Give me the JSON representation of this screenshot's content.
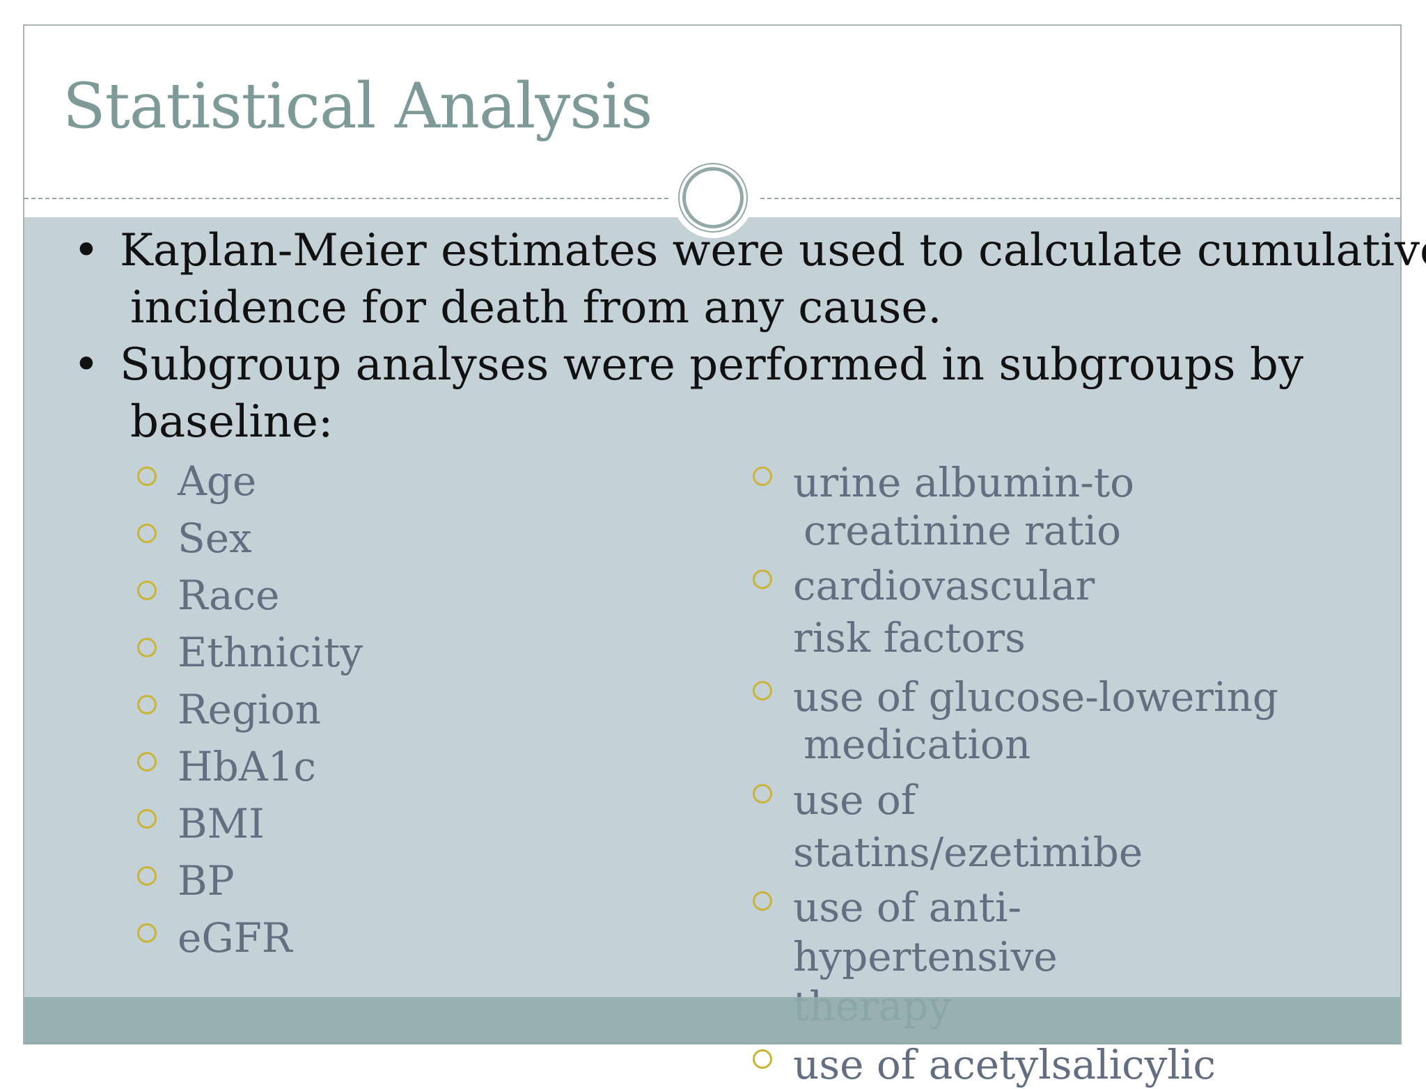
{
  "slide": {
    "title": "Statistical Analysis",
    "bullets": [
      {
        "line1": "Kaplan-Meier estimates were used to calculate cumulative",
        "line2": "incidence for death from any cause."
      },
      {
        "line1": "Subgroup analyses were performed in subgroups by",
        "line2": "baseline:"
      }
    ],
    "left_list": [
      "Age",
      "Sex",
      "Race",
      "Ethnicity",
      "Region",
      "HbA1c",
      "BMI",
      "BP",
      "eGFR"
    ],
    "right_list": [
      {
        "line1": "urine albumin-to",
        "line2": "creatinine ratio"
      },
      {
        "line1": "cardiovascular",
        "line2": "risk factors"
      },
      {
        "line1": "use of glucose-lowering",
        "line2": "medication"
      },
      {
        "line1": "use of",
        "line2": "statins/ezetimibe"
      },
      {
        "line1": "use of anti-",
        "line2": "hypertensive",
        "line3": "therapy"
      },
      {
        "line1": "use of acetylsalicylic"
      }
    ]
  }
}
